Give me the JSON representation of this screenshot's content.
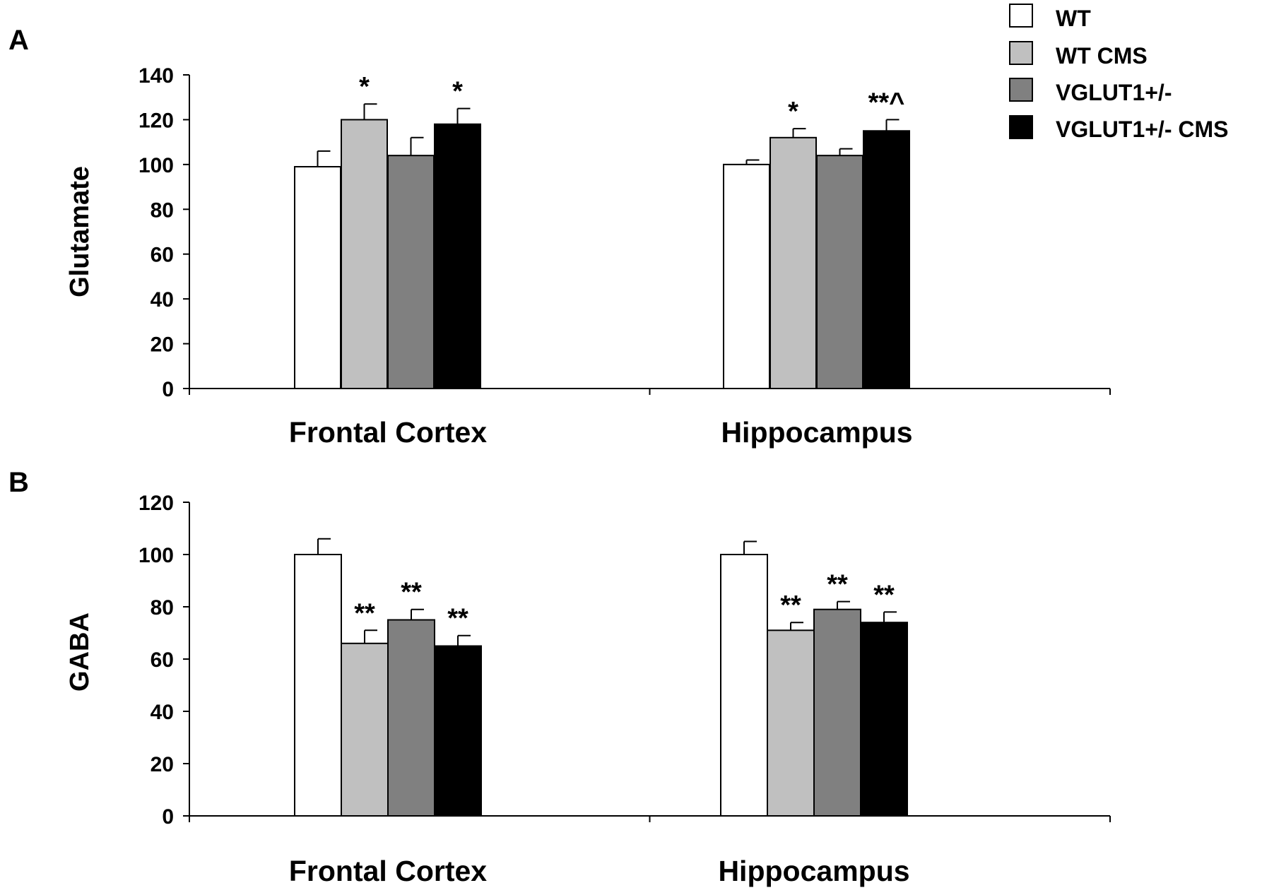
{
  "legend": {
    "entries": [
      {
        "label": "WT",
        "color": "#ffffff"
      },
      {
        "label": "WT CMS",
        "color": "#c0c0c0"
      },
      {
        "label": "VGLUT1+/-",
        "color": "#808080"
      },
      {
        "label": "VGLUT1+/- CMS",
        "color": "#000000"
      }
    ]
  },
  "chart_data": [
    {
      "type": "bar",
      "panel": "A",
      "ylabel": "Glutamate",
      "xlabel": "",
      "ylim": [
        0,
        140
      ],
      "yticks": [
        0,
        20,
        40,
        60,
        80,
        100,
        120,
        140
      ],
      "categories": [
        "Frontal Cortex",
        "Hippocampus"
      ],
      "series": [
        {
          "name": "WT",
          "color": "#ffffff",
          "values": [
            99,
            100
          ],
          "errors": [
            7,
            2
          ],
          "annotations": [
            "",
            ""
          ]
        },
        {
          "name": "WT CMS",
          "color": "#c0c0c0",
          "values": [
            120,
            112
          ],
          "errors": [
            7,
            4
          ],
          "annotations": [
            "*",
            "*"
          ]
        },
        {
          "name": "VGLUT1+/-",
          "color": "#808080",
          "values": [
            104,
            104
          ],
          "errors": [
            8,
            3
          ],
          "annotations": [
            "",
            ""
          ]
        },
        {
          "name": "VGLUT1+/- CMS",
          "color": "#000000",
          "values": [
            118,
            115
          ],
          "errors": [
            7,
            5
          ],
          "annotations": [
            "*",
            "**^"
          ]
        }
      ]
    },
    {
      "type": "bar",
      "panel": "B",
      "ylabel": "GABA",
      "xlabel": "",
      "ylim": [
        0,
        120
      ],
      "yticks": [
        0,
        20,
        40,
        60,
        80,
        100,
        120
      ],
      "categories": [
        "Frontal Cortex",
        "Hippocampus"
      ],
      "series": [
        {
          "name": "WT",
          "color": "#ffffff",
          "values": [
            100,
            100
          ],
          "errors": [
            6,
            5
          ],
          "annotations": [
            "",
            ""
          ]
        },
        {
          "name": "WT CMS",
          "color": "#c0c0c0",
          "values": [
            66,
            71
          ],
          "errors": [
            5,
            3
          ],
          "annotations": [
            "**",
            "**"
          ]
        },
        {
          "name": "VGLUT1+/-",
          "color": "#808080",
          "values": [
            75,
            79
          ],
          "errors": [
            4,
            3
          ],
          "annotations": [
            "**",
            "**"
          ]
        },
        {
          "name": "VGLUT1+/- CMS",
          "color": "#000000",
          "values": [
            65,
            74
          ],
          "errors": [
            4,
            4
          ],
          "annotations": [
            "**",
            "**"
          ]
        }
      ]
    }
  ]
}
